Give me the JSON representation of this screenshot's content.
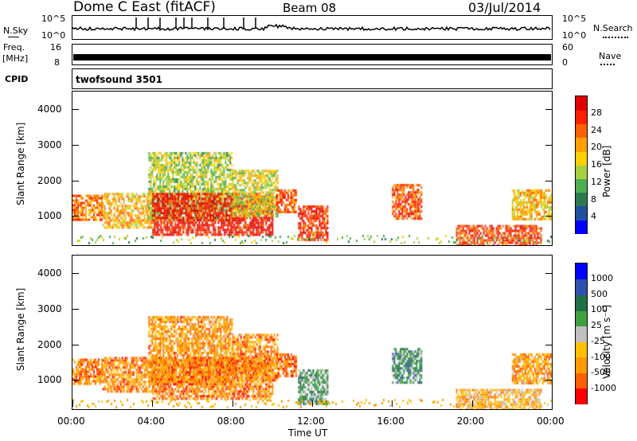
{
  "header": {
    "station": "Dome C East (fitACF)",
    "beam": "Beam 08",
    "date": "03/Jul/2014"
  },
  "strips": {
    "nsky": {
      "label": "N.Sky",
      "ticks": [
        "10^5",
        "10^0"
      ],
      "right_label": "N.Search",
      "right_ticks": [
        "10^5",
        "10^0"
      ]
    },
    "freq": {
      "label_top": "Freq.",
      "label_unit": "[MHz]",
      "ticks": [
        "16",
        "8"
      ],
      "right_label": "Nave",
      "right_ticks": [
        "60",
        "0"
      ]
    },
    "cpid": {
      "label": "CPID",
      "program": "twofsound 3501"
    }
  },
  "xaxis": {
    "label": "Time UT",
    "ticks": [
      "00:00",
      "04:00",
      "08:00",
      "12:00",
      "16:00",
      "20:00",
      "00:00"
    ]
  },
  "chart_data": [
    {
      "type": "heatmap",
      "title": "",
      "xlabel": "Time UT",
      "ylabel": "Slant Range [km]",
      "xlim": [
        0,
        24
      ],
      "ylim": [
        180,
        4500
      ],
      "yticks": [
        "1000",
        "2000",
        "3000",
        "4000"
      ],
      "colorbar": {
        "label": "Power [dB]",
        "ticks": [
          "28",
          "24",
          "20",
          "16",
          "12",
          "8",
          "4"
        ],
        "range": [
          0,
          30
        ],
        "colors": [
          "#0000ff",
          "#2050a0",
          "#2e7a50",
          "#4caf50",
          "#a8d040",
          "#ffd000",
          "#ffa000",
          "#ff6000",
          "#ff2000",
          "#e00000"
        ]
      },
      "regions": [
        {
          "t0": 0.0,
          "t1": 1.5,
          "r0": 900,
          "r1": 1600,
          "level": 0.72
        },
        {
          "t0": 1.5,
          "t1": 4.0,
          "r0": 650,
          "r1": 1650,
          "level": 0.62
        },
        {
          "t0": 3.8,
          "t1": 8.0,
          "r0": 900,
          "r1": 2800,
          "level": 0.45
        },
        {
          "t0": 4.0,
          "t1": 10.0,
          "r0": 450,
          "r1": 1650,
          "level": 0.9
        },
        {
          "t0": 8.0,
          "t1": 10.3,
          "r0": 1000,
          "r1": 2300,
          "level": 0.5
        },
        {
          "t0": 10.2,
          "t1": 11.2,
          "r0": 1100,
          "r1": 1750,
          "level": 0.78
        },
        {
          "t0": 11.3,
          "t1": 12.8,
          "r0": 300,
          "r1": 1300,
          "level": 0.85
        },
        {
          "t0": 16.0,
          "t1": 17.5,
          "r0": 900,
          "r1": 1900,
          "level": 0.78
        },
        {
          "t0": 19.2,
          "t1": 23.5,
          "r0": 200,
          "r1": 750,
          "level": 0.82
        },
        {
          "t0": 22.0,
          "t1": 24.0,
          "r0": 900,
          "r1": 1750,
          "level": 0.6
        }
      ]
    },
    {
      "type": "heatmap",
      "title": "",
      "xlabel": "Time UT",
      "ylabel": "Slant Range [km]",
      "xlim": [
        0,
        24
      ],
      "ylim": [
        180,
        4500
      ],
      "yticks": [
        "1000",
        "2000",
        "3000",
        "4000"
      ],
      "colorbar": {
        "label": "Velocity [m s⁻¹]",
        "ticks": [
          "1000",
          "500",
          "100",
          "25",
          "-25",
          "-100",
          "-500",
          "-1000"
        ],
        "range": [
          -1000,
          1000
        ],
        "colors": [
          "#ff0000",
          "#ff6000",
          "#ff9a00",
          "#ffc000",
          "#c0c0c0",
          "#40a040",
          "#207048",
          "#3050b0",
          "#0000ff"
        ]
      },
      "regions": [
        {
          "t0": 0.0,
          "t1": 1.5,
          "r0": 900,
          "r1": 1600,
          "level": 0.22
        },
        {
          "t0": 1.5,
          "t1": 4.0,
          "r0": 650,
          "r1": 1650,
          "level": 0.25
        },
        {
          "t0": 3.8,
          "t1": 8.0,
          "r0": 900,
          "r1": 2800,
          "level": 0.28
        },
        {
          "t0": 4.0,
          "t1": 10.0,
          "r0": 450,
          "r1": 1650,
          "level": 0.22
        },
        {
          "t0": 8.0,
          "t1": 10.3,
          "r0": 1000,
          "r1": 2300,
          "level": 0.24
        },
        {
          "t0": 10.2,
          "t1": 11.2,
          "r0": 1100,
          "r1": 1750,
          "level": 0.2
        },
        {
          "t0": 11.3,
          "t1": 12.8,
          "r0": 300,
          "r1": 1300,
          "level": 0.62
        },
        {
          "t0": 16.0,
          "t1": 17.5,
          "r0": 900,
          "r1": 1900,
          "level": 0.65
        },
        {
          "t0": 19.2,
          "t1": 23.5,
          "r0": 200,
          "r1": 750,
          "level": 0.35
        },
        {
          "t0": 22.0,
          "t1": 24.0,
          "r0": 900,
          "r1": 1750,
          "level": 0.3
        }
      ]
    }
  ]
}
